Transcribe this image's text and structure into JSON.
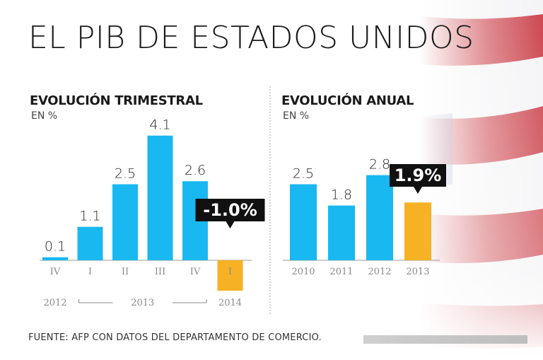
{
  "header": {
    "title": "EL PIB DE ESTADOS UNIDOS",
    "source": "FUENTE: AFP CON DATOS DEL DEPARTAMENTO DE COMERCIO."
  },
  "colors": {
    "bar": "#19b8f0",
    "highlight": "#f7b124",
    "callout_bg": "#111111",
    "callout_text": "#ffffff",
    "axis": "#9a9a9a",
    "tick_text": "#8a8a8a",
    "flag_red": "#c8323c",
    "flag_blue": "#2c3f80"
  },
  "chart_data": [
    {
      "type": "bar",
      "title": "EVOLUCIÓN TRIMESTRAL",
      "unit": "EN %",
      "categories": [
        "IV",
        "I",
        "II",
        "III",
        "IV",
        "I"
      ],
      "values": [
        0.1,
        1.1,
        2.5,
        4.1,
        2.6,
        -1.0
      ],
      "labels": [
        "0.1",
        "1.1",
        "2.5",
        "4.1",
        "2.6",
        null
      ],
      "highlight_index": 5,
      "highlight_label": "-1.0%",
      "groups": [
        {
          "label": "2012",
          "from": 0,
          "to": 0
        },
        {
          "label": "2013",
          "from": 1,
          "to": 4
        },
        {
          "label": "2014",
          "from": 5,
          "to": 5
        }
      ],
      "ylim": [
        -1.2,
        4.5
      ],
      "xlabel": "",
      "ylabel": ""
    },
    {
      "type": "bar",
      "title": "EVOLUCIÓN ANUAL",
      "unit": "EN %",
      "categories": [
        "2010",
        "2011",
        "2012",
        "2013"
      ],
      "values": [
        2.5,
        1.8,
        2.8,
        1.9
      ],
      "labels": [
        "2.5",
        "1.8",
        "2.8",
        null
      ],
      "highlight_index": 3,
      "highlight_label": "1.9%",
      "ylim": [
        0,
        4.5
      ],
      "xlabel": "",
      "ylabel": ""
    }
  ]
}
